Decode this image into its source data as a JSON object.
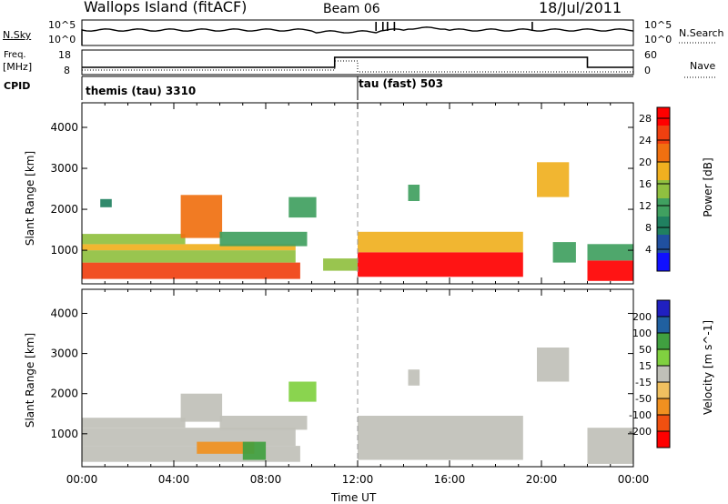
{
  "header": {
    "station": "Wallops Island (fitACF)",
    "beam": "Beam 06",
    "date": "18/Jul/2011"
  },
  "left_labels": {
    "nsky": "N.Sky",
    "nsky_ticks": [
      "10^5",
      "10^0"
    ],
    "freq_top": "Freq.",
    "freq_unit": "[MHz]",
    "freq_ticks": [
      "18",
      "8"
    ],
    "cpid": "CPID"
  },
  "right_labels": {
    "nsearch": "N.Search",
    "nsearch_ticks": [
      "10^5",
      "10^0"
    ],
    "nave": "Nave",
    "nave_ticks": [
      "60",
      "0"
    ]
  },
  "cpid_segments": [
    {
      "label": "themis (tau) 3310",
      "start_hour": 0
    },
    {
      "label": "tau (fast) 503",
      "start_hour": 12
    }
  ],
  "colors": {
    "power_scale": [
      "#1010ff",
      "#2050a0",
      "#208060",
      "#40a060",
      "#90c040",
      "#f0b020",
      "#f07010",
      "#f04010",
      "#ff0000"
    ],
    "velocity_scale": [
      "#2020c0",
      "#2060a0",
      "#40a040",
      "#80d040",
      "#c0c0b8",
      "#f0c060",
      "#f09020",
      "#f05010",
      "#ff0000"
    ],
    "ground_scatter": "#c0c0b8"
  },
  "chart_data": [
    {
      "type": "heatmap",
      "title": "",
      "ylabel": "Slant Range [km]",
      "xlabel": "",
      "x_ticks": [
        "00:00",
        "04:00",
        "08:00",
        "12:00",
        "16:00",
        "20:00",
        "00:00"
      ],
      "xlim_hours": [
        0,
        24
      ],
      "y_ticks": [
        1000,
        2000,
        3000,
        4000
      ],
      "ylim": [
        180,
        4600
      ],
      "colorbar_label": "Power [dB]",
      "colorbar_ticks": [
        4,
        8,
        12,
        16,
        20,
        24,
        28
      ],
      "colorbar_range": [
        0,
        30
      ],
      "regions": [
        {
          "t0": 0.0,
          "t1": 9.5,
          "r0": 300,
          "r1": 700,
          "level": 26
        },
        {
          "t0": 0.0,
          "t1": 9.3,
          "r0": 700,
          "r1": 1000,
          "level": 14
        },
        {
          "t0": 0.0,
          "t1": 9.3,
          "r0": 1000,
          "r1": 1150,
          "level": 18
        },
        {
          "t0": 0.0,
          "t1": 4.5,
          "r0": 1150,
          "r1": 1400,
          "level": 14
        },
        {
          "t0": 4.3,
          "t1": 6.1,
          "r0": 1300,
          "r1": 2350,
          "level": 20
        },
        {
          "t0": 6.0,
          "t1": 9.8,
          "r0": 1100,
          "r1": 1450,
          "level": 12
        },
        {
          "t0": 0.8,
          "t1": 1.3,
          "r0": 2050,
          "r1": 2250,
          "level": 8
        },
        {
          "t0": 9.0,
          "t1": 10.2,
          "r0": 1800,
          "r1": 2300,
          "level": 10
        },
        {
          "t0": 10.5,
          "t1": 12.0,
          "r0": 500,
          "r1": 800,
          "level": 16
        },
        {
          "t0": 12.0,
          "t1": 19.2,
          "r0": 350,
          "r1": 950,
          "level": 27
        },
        {
          "t0": 12.0,
          "t1": 19.2,
          "r0": 950,
          "r1": 1450,
          "level": 18
        },
        {
          "t0": 14.2,
          "t1": 14.7,
          "r0": 2200,
          "r1": 2600,
          "level": 10
        },
        {
          "t0": 19.8,
          "t1": 21.2,
          "r0": 2300,
          "r1": 3150,
          "level": 18
        },
        {
          "t0": 20.5,
          "t1": 21.5,
          "r0": 700,
          "r1": 1200,
          "level": 10
        },
        {
          "t0": 22.0,
          "t1": 24.0,
          "r0": 250,
          "r1": 750,
          "level": 27
        },
        {
          "t0": 22.0,
          "t1": 24.0,
          "r0": 750,
          "r1": 1150,
          "level": 10
        }
      ]
    },
    {
      "type": "heatmap",
      "title": "",
      "ylabel": "Slant Range [km]",
      "xlabel": "Time UT",
      "x_ticks": [
        "00:00",
        "04:00",
        "08:00",
        "12:00",
        "16:00",
        "20:00",
        "00:00"
      ],
      "xlim_hours": [
        0,
        24
      ],
      "y_ticks": [
        1000,
        2000,
        3000,
        4000
      ],
      "ylim": [
        180,
        4600
      ],
      "colorbar_label": "Velocity [m s^-1]",
      "colorbar_ticks": [
        200,
        100,
        50,
        15,
        -15,
        -50,
        -100,
        -200
      ],
      "regions": [
        {
          "t0": 0.0,
          "t1": 9.5,
          "r0": 300,
          "r1": 700,
          "kind": "ground"
        },
        {
          "t0": 0.0,
          "t1": 9.3,
          "r0": 700,
          "r1": 1150,
          "kind": "ground"
        },
        {
          "t0": 0.0,
          "t1": 4.5,
          "r0": 1150,
          "r1": 1400,
          "kind": "ground"
        },
        {
          "t0": 4.3,
          "t1": 6.1,
          "r0": 1300,
          "r1": 2000,
          "kind": "ground"
        },
        {
          "t0": 6.0,
          "t1": 9.8,
          "r0": 1100,
          "r1": 1450,
          "kind": "ground"
        },
        {
          "t0": 5.0,
          "t1": 7.5,
          "r0": 500,
          "r1": 800,
          "velocity": -60
        },
        {
          "t0": 7.0,
          "t1": 8.0,
          "r0": 350,
          "r1": 800,
          "velocity": 60
        },
        {
          "t0": 9.0,
          "t1": 10.2,
          "r0": 1800,
          "r1": 2300,
          "velocity": 20
        },
        {
          "t0": 12.0,
          "t1": 19.2,
          "r0": 350,
          "r1": 1450,
          "kind": "ground"
        },
        {
          "t0": 14.2,
          "t1": 14.7,
          "r0": 2200,
          "r1": 2600,
          "kind": "ground"
        },
        {
          "t0": 19.8,
          "t1": 21.2,
          "r0": 2300,
          "r1": 3150,
          "kind": "ground"
        },
        {
          "t0": 22.0,
          "t1": 24.0,
          "r0": 250,
          "r1": 1150,
          "kind": "ground"
        }
      ]
    }
  ]
}
